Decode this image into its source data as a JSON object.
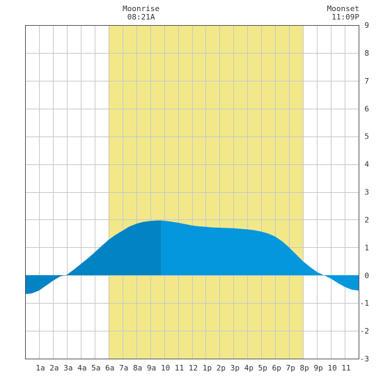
{
  "chart_data": {
    "type": "area",
    "annotations": [
      {
        "label": "Moonrise",
        "time": "08:21A",
        "hour": 8.35,
        "align": "middle"
      },
      {
        "label": "Moonset",
        "time": "11:09P",
        "hour": 23.15,
        "align": "end"
      }
    ],
    "daylight": {
      "start_hour": 6,
      "end_hour": 20
    },
    "x_ticks": [
      {
        "hour": 1,
        "label": "1a"
      },
      {
        "hour": 2,
        "label": "2a"
      },
      {
        "hour": 3,
        "label": "3a"
      },
      {
        "hour": 4,
        "label": "4a"
      },
      {
        "hour": 5,
        "label": "5a"
      },
      {
        "hour": 6,
        "label": "6a"
      },
      {
        "hour": 7,
        "label": "7a"
      },
      {
        "hour": 8,
        "label": "8a"
      },
      {
        "hour": 9,
        "label": "9a"
      },
      {
        "hour": 10,
        "label": "10"
      },
      {
        "hour": 11,
        "label": "11"
      },
      {
        "hour": 12,
        "label": "12"
      },
      {
        "hour": 13,
        "label": "1p"
      },
      {
        "hour": 14,
        "label": "2p"
      },
      {
        "hour": 15,
        "label": "3p"
      },
      {
        "hour": 16,
        "label": "4p"
      },
      {
        "hour": 17,
        "label": "5p"
      },
      {
        "hour": 18,
        "label": "6p"
      },
      {
        "hour": 19,
        "label": "7p"
      },
      {
        "hour": 20,
        "label": "8p"
      },
      {
        "hour": 21,
        "label": "9p"
      },
      {
        "hour": 22,
        "label": "10"
      },
      {
        "hour": 23,
        "label": "11"
      }
    ],
    "y_ticks": [
      "9",
      "8",
      "7",
      "6",
      "5",
      "4",
      "3",
      "2",
      "1",
      "0",
      "-1",
      "-2",
      "-3"
    ],
    "xlim": [
      0,
      24
    ],
    "ylim": [
      -3,
      9
    ],
    "grid": true,
    "split_hour": 9.8,
    "series": [
      {
        "x": [
          0,
          0.5,
          1,
          1.5,
          2,
          2.5,
          3,
          3.5,
          4,
          4.5,
          5,
          5.5,
          6,
          6.5,
          7,
          7.5,
          8,
          8.5,
          9,
          9.5,
          9.8,
          10,
          10.5,
          11,
          11.5,
          12,
          12.5,
          13,
          13.5,
          14,
          14.5,
          15,
          15.5,
          16,
          16.5,
          17,
          17.5,
          18,
          18.5,
          19,
          19.5,
          20,
          20.5,
          21,
          21.5,
          22,
          22.5,
          23,
          23.5,
          24
        ],
        "y": [
          -0.68,
          -0.65,
          -0.55,
          -0.38,
          -0.2,
          -0.05,
          0.02,
          0.2,
          0.4,
          0.6,
          0.82,
          1.05,
          1.27,
          1.45,
          1.6,
          1.75,
          1.85,
          1.92,
          1.95,
          1.97,
          1.97,
          1.96,
          1.93,
          1.89,
          1.84,
          1.79,
          1.76,
          1.74,
          1.72,
          1.71,
          1.7,
          1.69,
          1.67,
          1.65,
          1.62,
          1.57,
          1.5,
          1.39,
          1.22,
          1.0,
          0.75,
          0.5,
          0.3,
          0.12,
          0.0,
          -0.12,
          -0.28,
          -0.42,
          -0.52,
          -0.55
        ]
      }
    ],
    "colors": {
      "daylight": "#f2e88a",
      "tide_dark": "#0283c4",
      "tide_light": "#0497dd",
      "grid": "#c8c8c8",
      "frame": "#555555"
    }
  }
}
